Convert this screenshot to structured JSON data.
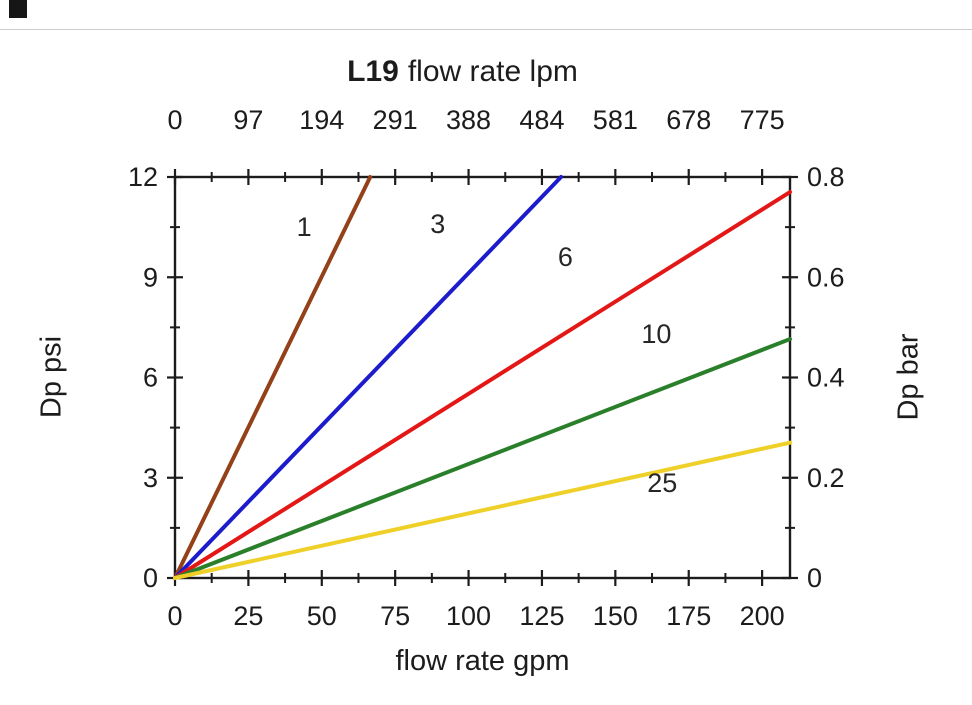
{
  "decorations": {
    "corner_square_color": "#161616",
    "top_rule_color": "#cdcdcd"
  },
  "chart_data": {
    "type": "line",
    "title": {
      "model": "L19"
    },
    "x_top": {
      "label": "flow rate lpm",
      "tick_labels": [
        "0",
        "97",
        "194",
        "291",
        "388",
        "484",
        "581",
        "678",
        "775"
      ]
    },
    "x_bottom": {
      "label": "flow rate gpm",
      "tick_labels": [
        "0",
        "25",
        "50",
        "75",
        "100",
        "125",
        "150",
        "175",
        "200"
      ],
      "tick_values": [
        0,
        25,
        50,
        75,
        100,
        125,
        150,
        175,
        200
      ],
      "minor_step": 12.5,
      "range": [
        0,
        209.5
      ]
    },
    "y_left": {
      "label": "Dp psi",
      "tick_labels": [
        "0",
        "3",
        "6",
        "9",
        "12"
      ],
      "tick_values": [
        0,
        3,
        6,
        9,
        12
      ],
      "minor_step": 1.5,
      "range": [
        0,
        12
      ]
    },
    "y_right": {
      "label": "Dp bar",
      "tick_labels": [
        "0",
        "0.2",
        "0.4",
        "0.6",
        "0.8"
      ]
    },
    "series": [
      {
        "name": "1",
        "color": "#944018",
        "points": [
          [
            0,
            0
          ],
          [
            66.5,
            12
          ]
        ],
        "label_at": [
          44,
          10.5
        ]
      },
      {
        "name": "3",
        "color": "#1c1ccd",
        "points": [
          [
            0,
            0
          ],
          [
            131.5,
            12
          ]
        ],
        "label_at": [
          89.5,
          10.6
        ]
      },
      {
        "name": "6",
        "color": "#e41717",
        "points": [
          [
            0,
            0
          ],
          [
            209.5,
            11.55
          ]
        ],
        "label_at": [
          133,
          9.6
        ]
      },
      {
        "name": "10",
        "color": "#2a7f2a",
        "points": [
          [
            0,
            0
          ],
          [
            209.5,
            7.15
          ]
        ],
        "label_at": [
          164,
          7.3
        ]
      },
      {
        "name": "25",
        "color": "#eed028",
        "points": [
          [
            0,
            0
          ],
          [
            209.5,
            4.05
          ]
        ],
        "label_at": [
          166,
          2.85
        ]
      }
    ]
  }
}
